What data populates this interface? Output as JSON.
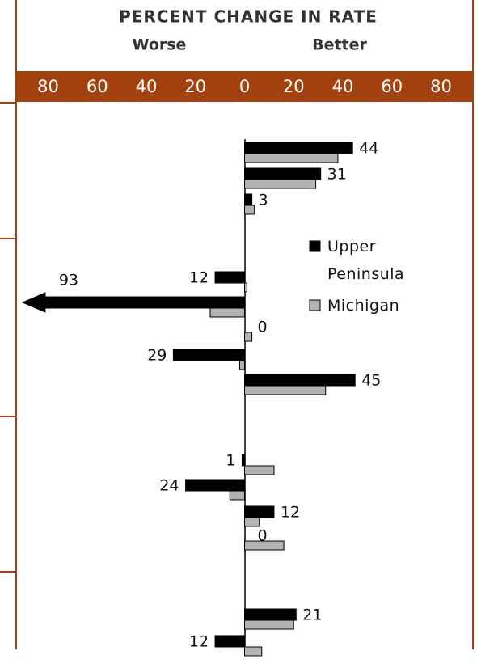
{
  "chart_data": {
    "type": "bar",
    "orientation": "horizontal",
    "title": "PERCENT CHANGE IN RATE",
    "negative_label": "Worse",
    "positive_label": "Better",
    "categories": [
      null,
      null,
      null,
      null,
      null,
      null,
      null,
      null,
      null,
      null,
      null,
      null,
      null,
      null
    ],
    "series": [
      {
        "name": "Upper Peninsula",
        "color": "#000000",
        "values": [
          44,
          31,
          3,
          -12,
          -93,
          0,
          -29,
          45,
          -1,
          -24,
          12,
          0,
          21,
          -12
        ],
        "value_labels": [
          "44",
          "31",
          "3",
          "12",
          "93",
          "0",
          "29",
          "45",
          "1",
          "24",
          "12",
          "0",
          "21",
          "12"
        ]
      },
      {
        "name": "Michigan",
        "color": "#b3b3b3",
        "values": [
          38,
          29,
          4,
          1,
          -14,
          3,
          -2,
          33,
          12,
          -6,
          6,
          16,
          20,
          7
        ]
      }
    ],
    "xlim": [
      -93,
      93
    ],
    "xticks": [
      {
        "value": -80,
        "label": "80"
      },
      {
        "value": -60,
        "label": "60"
      },
      {
        "value": -40,
        "label": "40"
      },
      {
        "value": -20,
        "label": "20"
      },
      0,
      20,
      40,
      60,
      80
    ],
    "band_color": "#a3420f"
  }
}
